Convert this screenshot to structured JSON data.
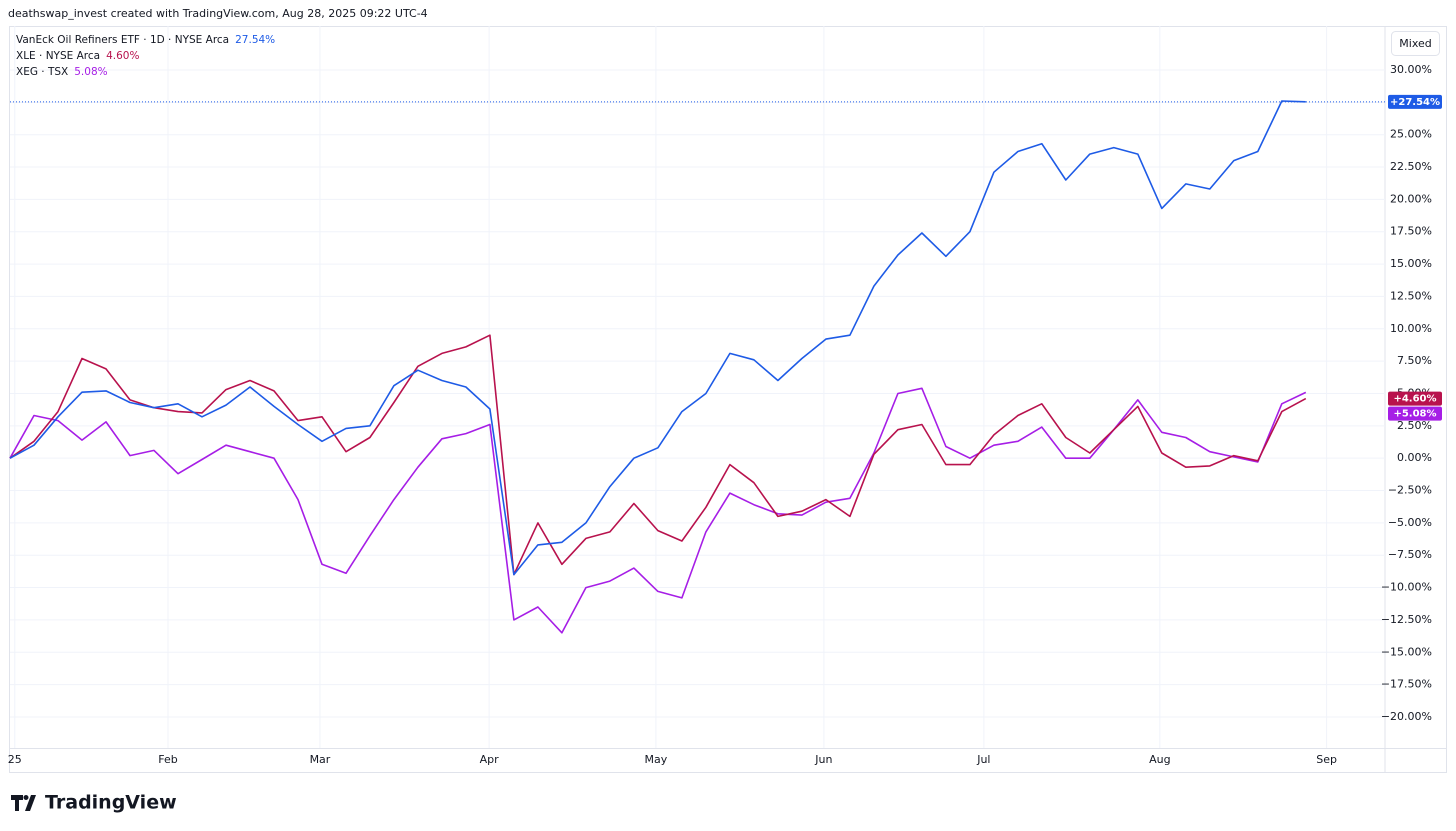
{
  "header": "deathswap_invest created with TradingView.com, Aug 28, 2025 09:22 UTC-4",
  "scale_mode": "Mixed",
  "brand": "TradingView",
  "chart_data": {
    "type": "line",
    "x": [
      0,
      3,
      6,
      9,
      12,
      15,
      18,
      21,
      24,
      27,
      30,
      33,
      36,
      39,
      42,
      45,
      48,
      51,
      54,
      57,
      60,
      63,
      66,
      69,
      72,
      75,
      78,
      81,
      84,
      87,
      90,
      93,
      96,
      99,
      102,
      105,
      108,
      111,
      114,
      117,
      120,
      123,
      126,
      129,
      132,
      135,
      138,
      141,
      144,
      147,
      150,
      153,
      156,
      159,
      162
    ],
    "xlim": [
      0,
      171.9
    ],
    "xticks": [
      {
        "value": 0.6,
        "label": "25"
      },
      {
        "value": 19.75,
        "label": "Feb"
      },
      {
        "value": 38.75,
        "label": "Mar"
      },
      {
        "value": 59.9,
        "label": "Apr"
      },
      {
        "value": 80.75,
        "label": "May"
      },
      {
        "value": 101.75,
        "label": "Jun"
      },
      {
        "value": 121.75,
        "label": "Jul"
      },
      {
        "value": 143.75,
        "label": "Aug"
      },
      {
        "value": 164.6,
        "label": "Sep"
      }
    ],
    "ylim": [
      -22.4,
      33.4
    ],
    "yticks": [
      {
        "value": 30,
        "label": "30.00%"
      },
      {
        "value": 27.5,
        "label": "27.50%"
      },
      {
        "value": 25,
        "label": "25.00%"
      },
      {
        "value": 22.5,
        "label": "22.50%"
      },
      {
        "value": 20,
        "label": "20.00%"
      },
      {
        "value": 17.5,
        "label": "17.50%"
      },
      {
        "value": 15,
        "label": "15.00%"
      },
      {
        "value": 12.5,
        "label": "12.50%"
      },
      {
        "value": 10,
        "label": "10.00%"
      },
      {
        "value": 7.5,
        "label": "7.50%"
      },
      {
        "value": 5,
        "label": "5.00%"
      },
      {
        "value": 2.5,
        "label": "2.50%"
      },
      {
        "value": 0,
        "label": "0.00%"
      },
      {
        "value": -2.5,
        "label": "−2.50%"
      },
      {
        "value": -5,
        "label": "−5.00%"
      },
      {
        "value": -7.5,
        "label": "−7.50%"
      },
      {
        "value": -10,
        "label": "−10.00%"
      },
      {
        "value": -12.5,
        "label": "−12.50%"
      },
      {
        "value": -15,
        "label": "−15.00%"
      },
      {
        "value": -17.5,
        "label": "−17.50%"
      },
      {
        "value": -20,
        "label": "−20.00%"
      }
    ],
    "grid": true,
    "series": [
      {
        "name": "VanEck Oil Refiners ETF · 1D · NYSE Arca",
        "legend_value": "27.54%",
        "badge": "+27.54%",
        "color": "#1e5be6",
        "values": [
          0,
          1.0,
          3.2,
          5.1,
          5.2,
          4.3,
          3.9,
          4.2,
          3.2,
          4.1,
          5.5,
          4.0,
          2.6,
          1.3,
          2.3,
          2.5,
          5.6,
          6.8,
          6.0,
          5.5,
          3.8,
          -9.0,
          -6.7,
          -6.5,
          -5.0,
          -2.2,
          0.0,
          0.8,
          3.6,
          5.0,
          8.1,
          7.6,
          6.0,
          7.7,
          9.2,
          9.5,
          13.3,
          15.7,
          17.4,
          15.6,
          17.5,
          22.1,
          23.7,
          24.3,
          21.5,
          23.5,
          24.0,
          23.5,
          19.3,
          21.2,
          20.8,
          23.0,
          23.7,
          27.6,
          27.54
        ]
      },
      {
        "name": "XLE · NYSE Arca",
        "legend_value": "4.60%",
        "badge": "+4.60%",
        "color": "#b8124d",
        "values": [
          0,
          1.3,
          3.6,
          7.7,
          6.9,
          4.5,
          3.9,
          3.6,
          3.5,
          5.3,
          6.0,
          5.2,
          2.9,
          3.2,
          0.5,
          1.6,
          4.3,
          7.1,
          8.1,
          8.6,
          9.5,
          -9.0,
          -5.0,
          -8.2,
          -6.2,
          -5.7,
          -3.5,
          -5.6,
          -6.4,
          -3.8,
          -0.5,
          -1.9,
          -4.5,
          -4.1,
          -3.2,
          -4.5,
          0.3,
          2.2,
          2.6,
          -0.5,
          -0.5,
          1.8,
          3.3,
          4.2,
          1.6,
          0.4,
          2.2,
          4.0,
          0.4,
          -0.7,
          -0.6,
          0.2,
          -0.2,
          3.6,
          4.6
        ]
      },
      {
        "name": "XEG · TSX",
        "legend_value": "5.08%",
        "badge": "+5.08%",
        "color": "#a61ee6",
        "values": [
          0,
          3.3,
          2.9,
          1.4,
          2.8,
          0.2,
          0.6,
          -1.2,
          -0.1,
          1.0,
          0.5,
          0.0,
          -3.2,
          -8.2,
          -8.9,
          -6.0,
          -3.2,
          -0.7,
          1.5,
          1.9,
          2.6,
          -12.5,
          -11.5,
          -13.5,
          -10.0,
          -9.5,
          -8.5,
          -10.3,
          -10.8,
          -5.7,
          -2.7,
          -3.6,
          -4.3,
          -4.4,
          -3.4,
          -3.1,
          0.4,
          5.0,
          5.4,
          0.9,
          0.0,
          1.0,
          1.3,
          2.4,
          0.0,
          0.0,
          2.2,
          4.5,
          2.0,
          1.6,
          0.5,
          0.1,
          -0.3,
          4.2,
          5.08
        ]
      }
    ]
  }
}
